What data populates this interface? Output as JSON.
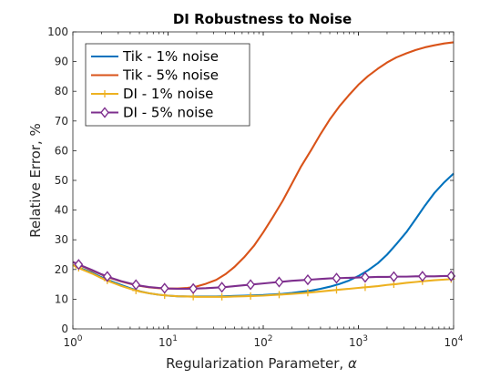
{
  "chart_data": {
    "type": "line",
    "title": "DI Robustness to Noise",
    "xlabel": "Regularization Parameter, ",
    "xlabel_symbol": "α",
    "ylabel": "Relative Error, %",
    "x_scale": "log",
    "xlim": [
      1,
      10000
    ],
    "ylim": [
      0,
      100
    ],
    "x_ticks": [
      {
        "base": "10",
        "exp": "0"
      },
      {
        "base": "10",
        "exp": "1"
      },
      {
        "base": "10",
        "exp": "2"
      },
      {
        "base": "10",
        "exp": "3"
      },
      {
        "base": "10",
        "exp": "4"
      }
    ],
    "y_ticks": [
      "0",
      "10",
      "20",
      "30",
      "40",
      "50",
      "60",
      "70",
      "80",
      "90",
      "100"
    ],
    "grid": false,
    "legend_position": "top-left",
    "series": [
      {
        "name": "Tik - 1% noise",
        "color": "#0072bd",
        "marker": "none",
        "x": [
          1,
          1.25,
          1.6,
          2,
          2.5,
          3.2,
          4,
          5,
          6.3,
          8,
          10,
          12.6,
          16,
          20,
          25,
          32,
          40,
          50,
          63,
          80,
          100,
          126,
          160,
          200,
          250,
          320,
          400,
          500,
          630,
          800,
          1000,
          1260,
          1600,
          2000,
          2500,
          3200,
          4000,
          5000,
          6300,
          8000,
          10000
        ],
        "y": [
          21.5,
          20.2,
          18.9,
          17.4,
          16.1,
          14.8,
          13.7,
          12.7,
          12.0,
          11.5,
          11.2,
          11.0,
          10.9,
          10.9,
          10.9,
          10.9,
          11.0,
          11.1,
          11.2,
          11.3,
          11.4,
          11.6,
          11.8,
          12.1,
          12.5,
          12.9,
          13.5,
          14.2,
          15.1,
          16.3,
          17.8,
          19.7,
          22.1,
          25.0,
          28.5,
          32.6,
          37.0,
          41.5,
          45.8,
          49.4,
          52.3
        ]
      },
      {
        "name": "Tik - 5% noise",
        "color": "#d95319",
        "marker": "none",
        "x": [
          1,
          1.25,
          1.6,
          2,
          2.5,
          3.2,
          4,
          5,
          6.3,
          8,
          10,
          12.6,
          16,
          20,
          25,
          32,
          40,
          50,
          63,
          80,
          100,
          126,
          160,
          200,
          250,
          320,
          400,
          500,
          630,
          800,
          1000,
          1260,
          1600,
          2000,
          2500,
          3200,
          4000,
          5000,
          6300,
          8000,
          10000
        ],
        "y": [
          22.5,
          21.1,
          19.6,
          18.3,
          17.1,
          16.0,
          15.2,
          14.5,
          14.0,
          13.7,
          13.6,
          13.6,
          13.8,
          14.3,
          15.2,
          16.5,
          18.4,
          20.9,
          24.1,
          28.0,
          32.5,
          37.6,
          43.1,
          48.9,
          54.7,
          60.3,
          65.6,
          70.5,
          74.9,
          78.8,
          82.2,
          85.1,
          87.6,
          89.7,
          91.4,
          92.8,
          93.9,
          94.8,
          95.5,
          96.1,
          96.5
        ]
      },
      {
        "name": "DI - 1% noise",
        "color": "#edb120",
        "marker": "plus",
        "x": [
          1,
          1.25,
          1.6,
          2,
          2.5,
          3.2,
          4,
          5,
          6.3,
          8,
          10,
          12.6,
          16,
          20,
          25,
          32,
          40,
          50,
          63,
          80,
          100,
          126,
          160,
          200,
          250,
          320,
          400,
          500,
          630,
          800,
          1000,
          1260,
          1600,
          2000,
          2500,
          3200,
          4000,
          5000,
          6300,
          8000,
          10000
        ],
        "y": [
          21.5,
          20.0,
          18.6,
          17.1,
          15.8,
          14.5,
          13.5,
          12.6,
          12.0,
          11.5,
          11.2,
          11.0,
          10.9,
          10.8,
          10.8,
          10.8,
          10.8,
          10.9,
          11.0,
          11.1,
          11.2,
          11.4,
          11.6,
          11.8,
          12.0,
          12.3,
          12.6,
          12.9,
          13.2,
          13.5,
          13.8,
          14.1,
          14.4,
          14.8,
          15.1,
          15.5,
          15.8,
          16.1,
          16.4,
          16.6,
          16.8
        ],
        "markers_x": [
          1.15,
          2.3,
          4.6,
          9.2,
          18.4,
          36.8,
          73.6,
          147,
          294,
          589,
          1178,
          2355,
          4710,
          9420
        ]
      },
      {
        "name": "DI - 5% noise",
        "color": "#7e2f8e",
        "marker": "diamond",
        "x": [
          1,
          1.25,
          1.6,
          2,
          2.5,
          3.2,
          4,
          5,
          6.3,
          8,
          10,
          12.6,
          16,
          20,
          25,
          32,
          40,
          50,
          63,
          80,
          100,
          126,
          160,
          200,
          250,
          320,
          400,
          500,
          630,
          800,
          1000,
          1260,
          1600,
          2000,
          2500,
          3200,
          4000,
          5000,
          6300,
          8000,
          10000
        ],
        "y": [
          22.5,
          21.2,
          19.8,
          18.4,
          17.2,
          16.1,
          15.3,
          14.6,
          14.1,
          13.8,
          13.6,
          13.5,
          13.5,
          13.6,
          13.7,
          13.9,
          14.1,
          14.4,
          14.7,
          15.0,
          15.3,
          15.6,
          15.9,
          16.2,
          16.4,
          16.6,
          16.8,
          17.0,
          17.1,
          17.2,
          17.3,
          17.4,
          17.5,
          17.5,
          17.6,
          17.6,
          17.7,
          17.7,
          17.7,
          17.8,
          17.8
        ],
        "markers_x": [
          1.15,
          2.3,
          4.6,
          9.2,
          18.4,
          36.8,
          73.6,
          147,
          294,
          589,
          1178,
          2355,
          4710,
          9420
        ]
      }
    ]
  }
}
